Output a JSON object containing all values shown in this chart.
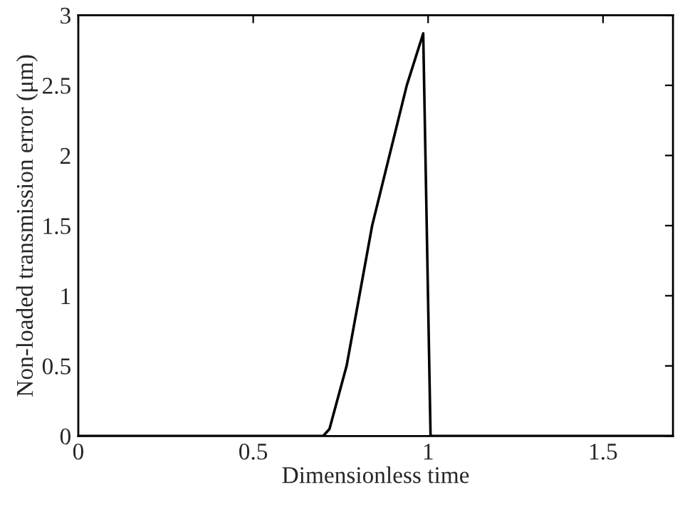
{
  "chart_data": {
    "type": "line",
    "xlabel": "Dimensionless time",
    "ylabel": "Non-loaded transmission error (μm)",
    "series": [
      {
        "color": "#000000",
        "x": [
          0,
          0.7,
          0.718,
          0.767,
          0.84,
          0.939,
          0.986,
          1.007,
          1.7
        ],
        "values": [
          0,
          0,
          0.05,
          0.5,
          1.5,
          2.5,
          2.87,
          0,
          0
        ]
      }
    ],
    "xlim": [
      0,
      1.7
    ],
    "xticks": [
      0,
      0.5,
      1,
      1.5
    ],
    "ylim": [
      0,
      3
    ],
    "yticks": [
      0,
      0.5,
      1,
      1.5,
      2,
      2.5,
      3
    ],
    "grid": false,
    "legend": false
  }
}
